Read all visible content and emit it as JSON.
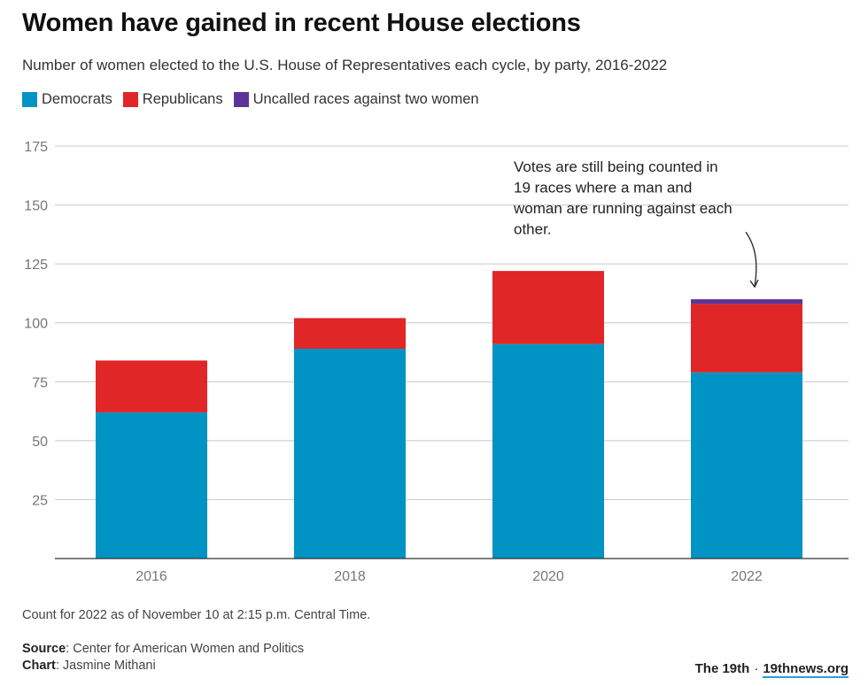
{
  "title": "Women have gained in recent House elections",
  "subtitle": "Number of women elected to the U.S. House of Representatives each cycle, by party, 2016-2022",
  "legend": [
    {
      "label": "Democrats",
      "color": "#0093c4"
    },
    {
      "label": "Republicans",
      "color": "#e02626"
    },
    {
      "label": "Uncalled races against two women",
      "color": "#5c3596"
    }
  ],
  "chart_data": {
    "type": "bar",
    "stacked": true,
    "categories": [
      "2016",
      "2018",
      "2020",
      "2022"
    ],
    "series": [
      {
        "name": "Democrats",
        "color": "#0093c4",
        "values": [
          62,
          89,
          91,
          79
        ]
      },
      {
        "name": "Republicans",
        "color": "#e02626",
        "values": [
          22,
          13,
          31,
          29
        ]
      },
      {
        "name": "Uncalled races against two women",
        "color": "#5c3596",
        "values": [
          0,
          0,
          0,
          2
        ]
      }
    ],
    "ylim": [
      0,
      175
    ],
    "yticks": [
      25,
      50,
      75,
      100,
      125,
      150,
      175
    ],
    "grid": true,
    "annotation": {
      "text_lines": [
        "Votes are still being counted in",
        "19 races where a man and",
        "woman are running against each",
        "other."
      ],
      "category": "2022"
    }
  },
  "footer": {
    "note": "Count for 2022 as of November 10 at 2:15 p.m. Central Time.",
    "source_label": "Source",
    "source_text": ": Center for American Women and Politics",
    "chart_label": "Chart",
    "chart_text": ": Jasmine Mithani",
    "brand_name": "The 19th",
    "brand_sep": "·",
    "brand_site": "19thnews.org"
  }
}
